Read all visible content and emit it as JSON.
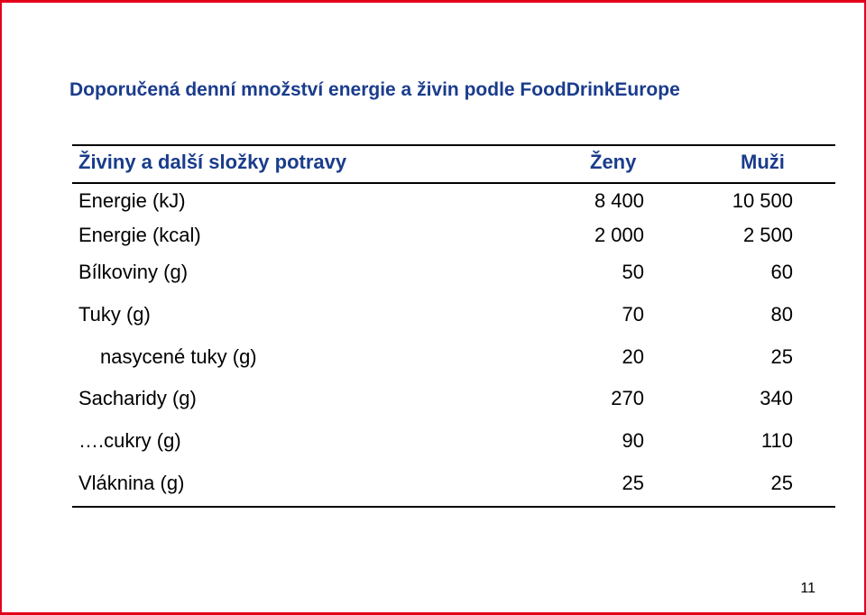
{
  "title": "Doporučená denní množství energie a živin podle FoodDrinkEurope",
  "table": {
    "headers": {
      "nutrient": "Živiny a další složky potravy",
      "women": "Ženy",
      "men": "Muži"
    },
    "rows": [
      {
        "name": "Energie (kJ)",
        "women": "8 400",
        "men": "10 500"
      },
      {
        "name": "Energie (kcal)",
        "women": "2 000",
        "men": "2 500"
      },
      {
        "name": "Bílkoviny (g)",
        "women": "50",
        "men": "60"
      },
      {
        "name": "Tuky (g)",
        "women": "70",
        "men": "80"
      },
      {
        "name": "nasycené tuky (g)",
        "women": "20",
        "men": "25"
      },
      {
        "name": "Sacharidy (g)",
        "women": "270",
        "men": "340"
      },
      {
        "name": "….cukry (g)",
        "women": "90",
        "men": "110"
      },
      {
        "name": "Vláknina (g)",
        "women": "25",
        "men": "25"
      }
    ]
  },
  "page_number": "11",
  "colors": {
    "title": "#1a3c8c",
    "frame": "#e3001b"
  }
}
